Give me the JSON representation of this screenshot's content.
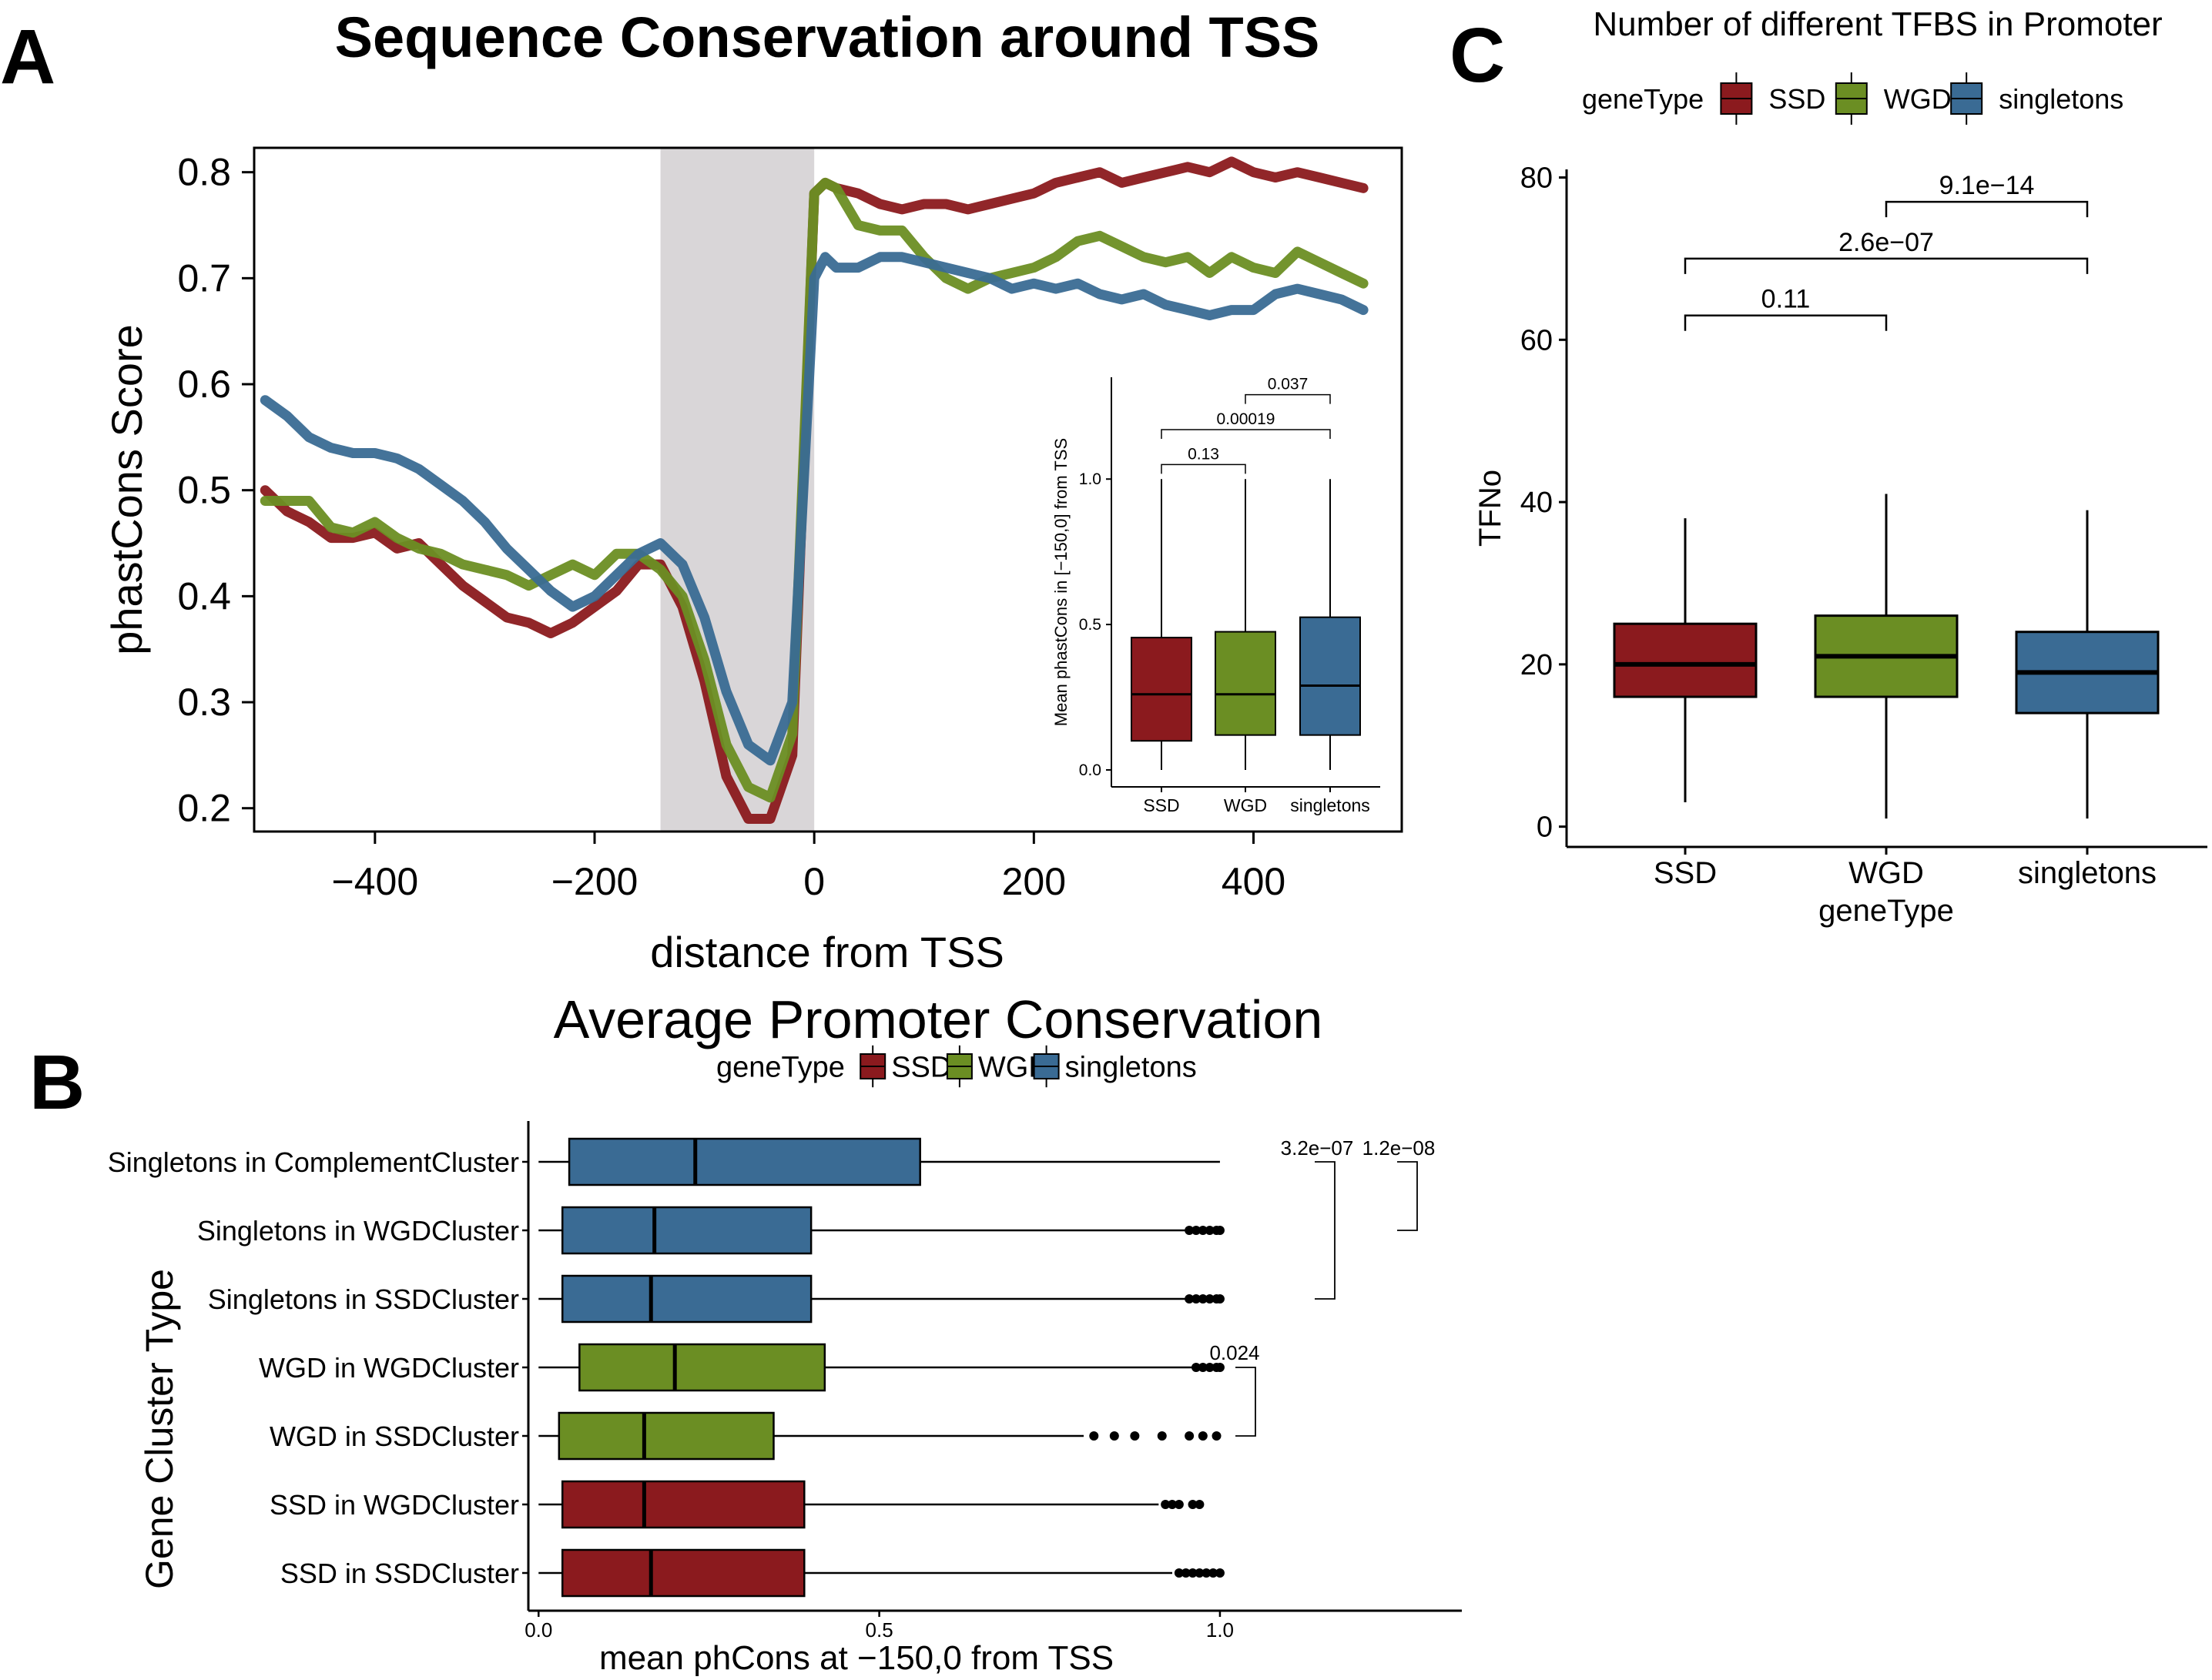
{
  "colors": {
    "SSD": "#8b1a1e",
    "WGD": "#6b8e23",
    "singletons": "#3a6b94",
    "shade": "#d9d6d8",
    "axis": "#000000"
  },
  "chart_data": [
    {
      "panel": "A",
      "type": "line",
      "title": "Sequence Conservation around TSS",
      "xlabel": "distance from TSS",
      "ylabel": "phastCons Score",
      "xlim": [
        -510,
        535
      ],
      "ylim": [
        0.178,
        0.823
      ],
      "xticks": [
        -400,
        -200,
        0,
        200,
        400
      ],
      "xtick_labels": [
        "−400",
        "−200",
        "0",
        "200",
        "400"
      ],
      "yticks": [
        0.2,
        0.3,
        0.4,
        0.5,
        0.6,
        0.7,
        0.8
      ],
      "ytick_labels": [
        "0.2",
        "0.3",
        "0.4",
        "0.5",
        "0.6",
        "0.7",
        "0.8"
      ],
      "shaded_region": [
        -140,
        0
      ],
      "x": [
        -500,
        -480,
        -460,
        -440,
        -420,
        -400,
        -380,
        -360,
        -340,
        -320,
        -300,
        -280,
        -260,
        -240,
        -220,
        -200,
        -180,
        -160,
        -140,
        -120,
        -100,
        -80,
        -60,
        -40,
        -20,
        0,
        10,
        20,
        40,
        60,
        80,
        100,
        120,
        140,
        160,
        180,
        200,
        220,
        240,
        260,
        280,
        300,
        320,
        340,
        360,
        380,
        400,
        420,
        440,
        460,
        480,
        500
      ],
      "series": [
        {
          "name": "SSD",
          "values": [
            0.5,
            0.48,
            0.47,
            0.455,
            0.455,
            0.46,
            0.445,
            0.45,
            0.43,
            0.41,
            0.395,
            0.38,
            0.375,
            0.365,
            0.375,
            0.39,
            0.405,
            0.43,
            0.43,
            0.39,
            0.32,
            0.23,
            0.19,
            0.19,
            0.25,
            0.78,
            0.79,
            0.785,
            0.78,
            0.77,
            0.765,
            0.77,
            0.77,
            0.765,
            0.77,
            0.775,
            0.78,
            0.79,
            0.795,
            0.8,
            0.79,
            0.795,
            0.8,
            0.805,
            0.8,
            0.81,
            0.8,
            0.795,
            0.8,
            0.795,
            0.79,
            0.785
          ]
        },
        {
          "name": "WGD",
          "values": [
            0.49,
            0.49,
            0.49,
            0.465,
            0.46,
            0.47,
            0.455,
            0.445,
            0.44,
            0.43,
            0.425,
            0.42,
            0.41,
            0.42,
            0.43,
            0.42,
            0.44,
            0.44,
            0.425,
            0.4,
            0.34,
            0.26,
            0.22,
            0.21,
            0.27,
            0.78,
            0.79,
            0.785,
            0.75,
            0.745,
            0.745,
            0.72,
            0.7,
            0.69,
            0.7,
            0.705,
            0.71,
            0.72,
            0.735,
            0.74,
            0.73,
            0.72,
            0.715,
            0.72,
            0.705,
            0.72,
            0.71,
            0.705,
            0.725,
            0.715,
            0.705,
            0.695
          ]
        },
        {
          "name": "singletons",
          "values": [
            0.585,
            0.57,
            0.55,
            0.54,
            0.535,
            0.535,
            0.53,
            0.52,
            0.505,
            0.49,
            0.47,
            0.445,
            0.425,
            0.405,
            0.39,
            0.4,
            0.42,
            0.44,
            0.45,
            0.43,
            0.38,
            0.31,
            0.26,
            0.245,
            0.3,
            0.7,
            0.72,
            0.71,
            0.71,
            0.72,
            0.72,
            0.715,
            0.71,
            0.705,
            0.7,
            0.69,
            0.695,
            0.69,
            0.695,
            0.685,
            0.68,
            0.685,
            0.675,
            0.67,
            0.665,
            0.67,
            0.67,
            0.685,
            0.69,
            0.685,
            0.68,
            0.67
          ]
        }
      ],
      "inset": {
        "type": "box",
        "ylabel": "Mean phastCons in [−150,0] from TSS",
        "ylim": [
          0,
          1.35
        ],
        "yticks": [
          0.0,
          0.5,
          1.0
        ],
        "ytick_labels": [
          "0.0",
          "0.5",
          "1.0"
        ],
        "categories": [
          "SSD",
          "WGD",
          "singletons"
        ],
        "boxes": [
          {
            "min": 0.0,
            "q1": 0.1,
            "median": 0.26,
            "q3": 0.455,
            "max": 1.0
          },
          {
            "min": 0.0,
            "q1": 0.12,
            "median": 0.26,
            "q3": 0.475,
            "max": 1.0
          },
          {
            "min": 0.0,
            "q1": 0.12,
            "median": 0.29,
            "q3": 0.525,
            "max": 1.0
          }
        ],
        "comparisons": [
          {
            "from": 0,
            "to": 1,
            "label": "0.13",
            "level": 1.05
          },
          {
            "from": 0,
            "to": 2,
            "label": "0.00019",
            "level": 1.17
          },
          {
            "from": 1,
            "to": 2,
            "label": "0.037",
            "level": 1.29
          }
        ]
      }
    },
    {
      "panel": "B",
      "type": "box",
      "orientation": "horizontal",
      "title": "Average Promoter Conservation",
      "xlabel": "mean phCons at −150,0 from TSS",
      "ylabel": "Gene Cluster Type",
      "legend_title": "geneType",
      "legend": [
        "SSD",
        "WGD",
        "singletons"
      ],
      "legend_position": "top",
      "xlim": [
        -0.015,
        1.355
      ],
      "xticks": [
        0.0,
        0.5,
        1.0
      ],
      "xtick_labels": [
        "0.0",
        "0.5",
        "1.0"
      ],
      "categories": [
        "Singletons  in  ComplementCluster",
        "Singletons  in  WGDCluster",
        "Singletons  in  SSDCluster",
        "WGD  in  WGDCluster",
        "WGD  in  SSDCluster",
        "SSD  in  WGDCluster",
        "SSD  in  SSDCluster"
      ],
      "groups": [
        "singletons",
        "singletons",
        "singletons",
        "WGD",
        "WGD",
        "SSD",
        "SSD"
      ],
      "boxes": [
        {
          "min": 0.0,
          "q1": 0.045,
          "median": 0.23,
          "q3": 0.56,
          "max": 1.0,
          "outliers": []
        },
        {
          "min": 0.0,
          "q1": 0.035,
          "median": 0.17,
          "q3": 0.4,
          "max": 0.95,
          "outliers": [
            0.955,
            0.965,
            0.975,
            0.985,
            0.995,
            1.0
          ]
        },
        {
          "min": 0.0,
          "q1": 0.035,
          "median": 0.165,
          "q3": 0.4,
          "max": 0.95,
          "outliers": [
            0.955,
            0.965,
            0.975,
            0.985,
            0.995,
            1.0
          ]
        },
        {
          "min": 0.0,
          "q1": 0.06,
          "median": 0.2,
          "q3": 0.42,
          "max": 0.96,
          "outliers": [
            0.965,
            0.975,
            0.985,
            0.995,
            1.0
          ]
        },
        {
          "min": 0.0,
          "q1": 0.03,
          "median": 0.155,
          "q3": 0.345,
          "max": 0.8,
          "outliers": [
            0.815,
            0.845,
            0.875,
            0.915,
            0.955,
            0.975,
            0.995
          ]
        },
        {
          "min": 0.0,
          "q1": 0.035,
          "median": 0.155,
          "q3": 0.39,
          "max": 0.91,
          "outliers": [
            0.92,
            0.93,
            0.94,
            0.96,
            0.97
          ]
        },
        {
          "min": 0.0,
          "q1": 0.035,
          "median": 0.165,
          "q3": 0.39,
          "max": 0.93,
          "outliers": [
            0.94,
            0.95,
            0.96,
            0.97,
            0.98,
            0.99,
            1.0
          ]
        }
      ],
      "comparisons": [
        {
          "label": "3.2e−07",
          "rows": [
            0,
            2
          ]
        },
        {
          "label": "1.2e−08",
          "rows": [
            0,
            1
          ]
        },
        {
          "label": "0.024",
          "rows": [
            3,
            4
          ]
        }
      ]
    },
    {
      "panel": "C",
      "type": "box",
      "title": "Number of different TFBS in Promoter",
      "xlabel": "geneType",
      "ylabel": "TFNo",
      "legend_title": "geneType",
      "legend": [
        "SSD",
        "WGD",
        "singletons"
      ],
      "legend_position": "top",
      "ylim": [
        -2.5,
        81
      ],
      "yticks": [
        0,
        20,
        40,
        60,
        80
      ],
      "ytick_labels": [
        "0",
        "20",
        "40",
        "60",
        "80"
      ],
      "categories": [
        "SSD",
        "WGD",
        "singletons"
      ],
      "boxes": [
        {
          "min": 3,
          "q1": 16,
          "median": 20,
          "q3": 25,
          "max": 38
        },
        {
          "min": 1,
          "q1": 16,
          "median": 21,
          "q3": 26,
          "max": 41
        },
        {
          "min": 1,
          "q1": 14,
          "median": 19,
          "q3": 24,
          "max": 39
        }
      ],
      "comparisons": [
        {
          "from": 0,
          "to": 1,
          "label": "0.11",
          "level": 63
        },
        {
          "from": 0,
          "to": 2,
          "label": "2.6e−07",
          "level": 70
        },
        {
          "from": 1,
          "to": 2,
          "label": "9.1e−14",
          "level": 77
        }
      ]
    }
  ],
  "panel_labels": [
    "A",
    "B",
    "C"
  ]
}
